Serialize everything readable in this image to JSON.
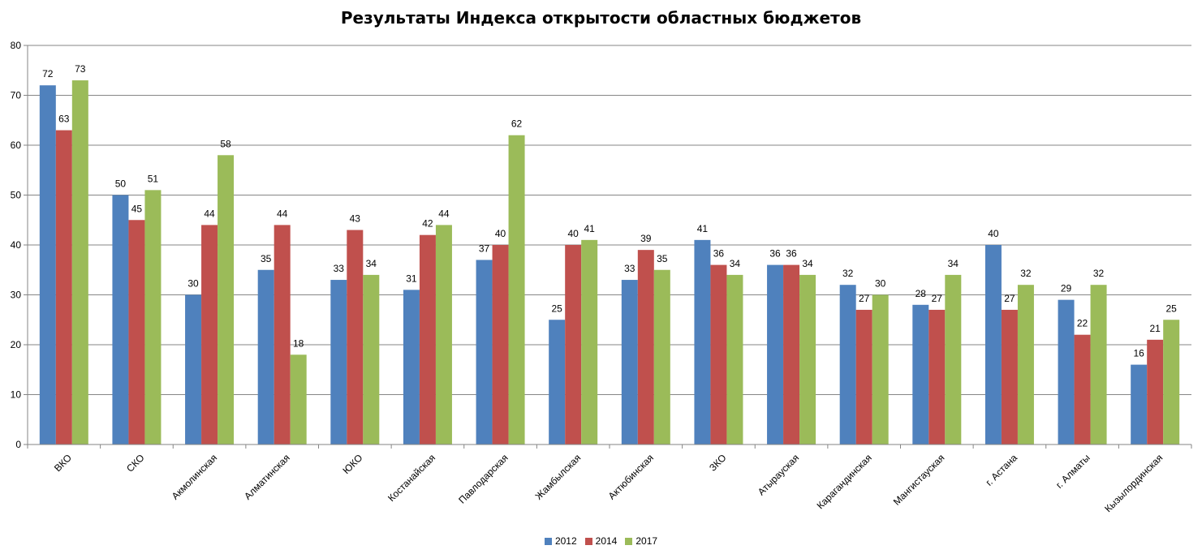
{
  "chart_data": {
    "type": "bar",
    "title": "Результаты Индекса открытости областных бюджетов",
    "xlabel": "",
    "ylabel": "",
    "ylim": [
      0,
      80
    ],
    "yticks": [
      0,
      10,
      20,
      30,
      40,
      50,
      60,
      70,
      80
    ],
    "grid": true,
    "legend_position": "bottom",
    "categories": [
      "ВКО",
      "СКО",
      "Акмолинская",
      "Алматинская",
      "ЮКО",
      "Костанайская",
      "Павлодарская",
      "Жамбылская",
      "Актюбинская",
      "ЗКО",
      "Атырауская",
      "Карагандинская",
      "Мангистауская",
      "г. Астана",
      "г. Алматы",
      "Кызылординская"
    ],
    "series": [
      {
        "name": "2012",
        "color": "#4F81BD",
        "values": [
          72,
          50,
          30,
          35,
          33,
          31,
          37,
          25,
          33,
          41,
          36,
          32,
          28,
          40,
          29,
          16
        ]
      },
      {
        "name": "2014",
        "color": "#C0504D",
        "values": [
          63,
          45,
          44,
          44,
          43,
          42,
          40,
          40,
          39,
          36,
          36,
          27,
          27,
          27,
          22,
          21
        ]
      },
      {
        "name": "2017",
        "color": "#9BBB59",
        "values": [
          73,
          51,
          58,
          18,
          34,
          44,
          62,
          41,
          35,
          34,
          34,
          30,
          34,
          32,
          32,
          25
        ]
      }
    ]
  }
}
